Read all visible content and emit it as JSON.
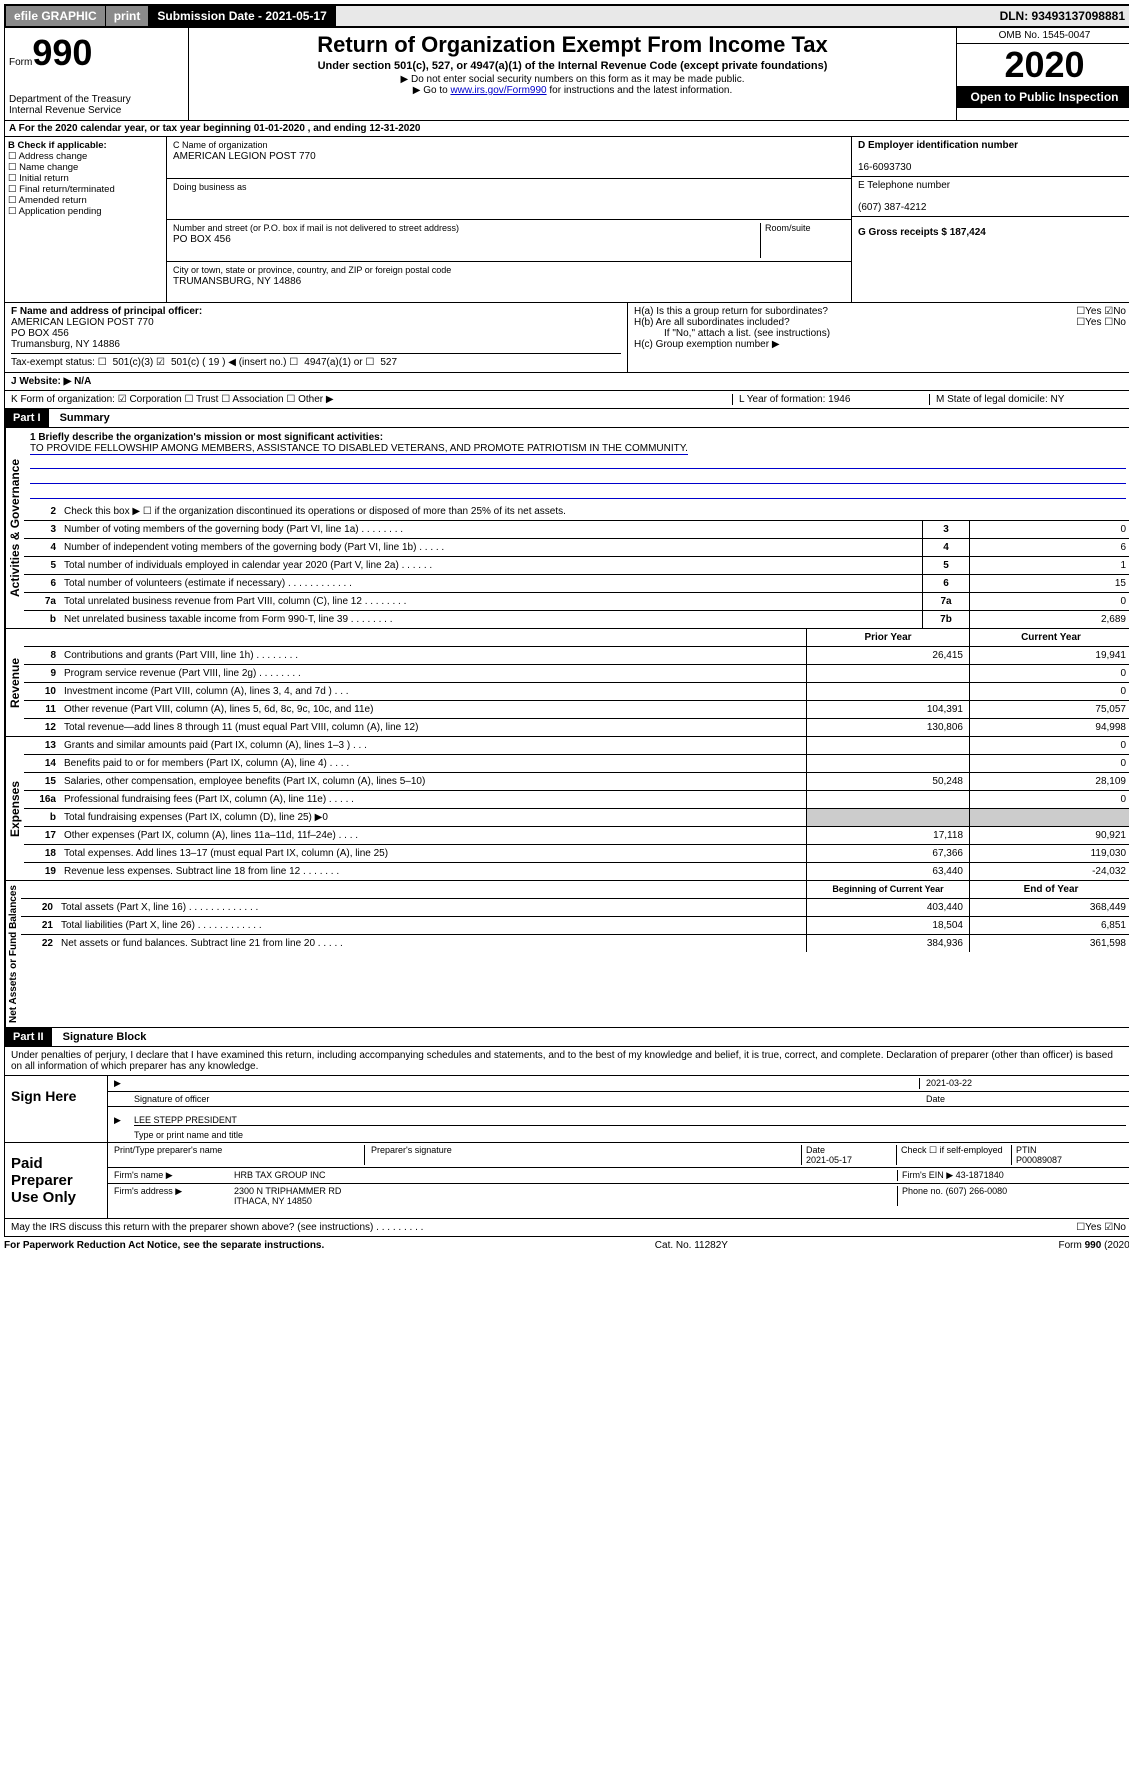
{
  "topbar": {
    "efile": "efile GRAPHIC",
    "print": "print",
    "sub_date_label": "Submission Date - 2021-05-17",
    "dln": "DLN: 93493137098881"
  },
  "header": {
    "form_label": "Form",
    "form_num": "990",
    "dept": "Department of the Treasury\nInternal Revenue Service",
    "title": "Return of Organization Exempt From Income Tax",
    "sub1": "Under section 501(c), 527, or 4947(a)(1) of the Internal Revenue Code (except private foundations)",
    "sub2": "▶ Do not enter social security numbers on this form as it may be made public.",
    "sub3_pre": "▶ Go to ",
    "sub3_link": "www.irs.gov/Form990",
    "sub3_post": " for instructions and the latest information.",
    "omb": "OMB No. 1545-0047",
    "year": "2020",
    "inspect": "Open to Public Inspection"
  },
  "section_a": "A For the 2020 calendar year, or tax year beginning 01-01-2020    , and ending 12-31-2020",
  "col_b": {
    "title": "B Check if applicable:",
    "items": [
      "Address change",
      "Name change",
      "Initial return",
      "Final return/terminated",
      "Amended return",
      "Application pending"
    ]
  },
  "col_c": {
    "c_label": "C Name of organization",
    "c_name": "AMERICAN LEGION POST 770",
    "dba": "Doing business as",
    "addr_label": "Number and street (or P.O. box if mail is not delivered to street address)",
    "room": "Room/suite",
    "addr": "PO BOX 456",
    "city_label": "City or town, state or province, country, and ZIP or foreign postal code",
    "city": "TRUMANSBURG, NY  14886"
  },
  "col_d": {
    "d_label": "D Employer identification number",
    "ein": "16-6093730",
    "e_label": "E Telephone number",
    "phone": "(607) 387-4212",
    "g": "G Gross receipts $ 187,424"
  },
  "block_fh": {
    "f_label": "F  Name and address of principal officer:",
    "f_name": "AMERICAN LEGION POST 770",
    "f_addr1": "PO BOX 456",
    "f_addr2": "Trumansburg, NY  14886",
    "tax_label": "Tax-exempt status:",
    "tax_501c3": "501(c)(3)",
    "tax_501c": "501(c) ( 19 ) ◀ (insert no.)",
    "tax_4947": "4947(a)(1) or",
    "tax_527": "527",
    "ha": "H(a)  Is this a group return for subordinates?",
    "ha_ans": "☐Yes ☑No",
    "hb": "H(b)  Are all subordinates included?",
    "hb_ans": "☐Yes ☐No",
    "hb_note": "If \"No,\" attach a list. (see instructions)",
    "hc": "H(c)  Group exemption number ▶"
  },
  "line_j": "J  Website: ▶  N/A",
  "line_k": {
    "k": "K Form of organization:  ☑ Corporation  ☐ Trust  ☐ Association  ☐ Other ▶",
    "l": "L Year of formation: 1946",
    "m": "M State of legal domicile: NY"
  },
  "part1": {
    "label": "Part I",
    "title": "Summary",
    "q1": "1  Briefly describe the organization's mission or most significant activities:",
    "mission": "TO PROVIDE FELLOWSHIP AMONG MEMBERS, ASSISTANCE TO DISABLED VETERANS, AND PROMOTE PATRIOTISM IN THE COMMUNITY.",
    "q2": "Check this box ▶ ☐  if the organization discontinued its operations or disposed of more than 25% of its net assets.",
    "governance_label": "Activities & Governance",
    "revenue_label": "Revenue",
    "expenses_label": "Expenses",
    "net_label": "Net Assets or Fund Balances",
    "lines_gov": [
      {
        "n": "3",
        "d": "Number of voting members of the governing body (Part VI, line 1a)  .    .    .    .    .    .    .    .",
        "b": "3",
        "v": "0"
      },
      {
        "n": "4",
        "d": "Number of independent voting members of the governing body (Part VI, line 1b)  .    .    .    .    .",
        "b": "4",
        "v": "6"
      },
      {
        "n": "5",
        "d": "Total number of individuals employed in calendar year 2020 (Part V, line 2a)  .    .    .    .    .    .",
        "b": "5",
        "v": "1"
      },
      {
        "n": "6",
        "d": "Total number of volunteers (estimate if necessary)  .    .    .    .    .    .    .    .    .    .    .    .",
        "b": "6",
        "v": "15"
      },
      {
        "n": "7a",
        "d": "Total unrelated business revenue from Part VIII, column (C), line 12  .    .    .    .    .    .    .    .",
        "b": "7a",
        "v": "0"
      },
      {
        "n": "  b",
        "d": "Net unrelated business taxable income from Form 990-T, line 39  .    .    .    .    .    .    .    .",
        "b": "7b",
        "v": "2,689"
      }
    ],
    "head_prior": "Prior Year",
    "head_current": "Current Year",
    "lines_rev": [
      {
        "n": "8",
        "d": "Contributions and grants (Part VIII, line 1h)  .    .    .    .    .    .    .    .",
        "p": "26,415",
        "c": "19,941"
      },
      {
        "n": "9",
        "d": "Program service revenue (Part VIII, line 2g)  .    .    .    .    .    .    .    .",
        "p": "",
        "c": "0"
      },
      {
        "n": "10",
        "d": "Investment income (Part VIII, column (A), lines 3, 4, and 7d )  .    .    .",
        "p": "",
        "c": "0"
      },
      {
        "n": "11",
        "d": "Other revenue (Part VIII, column (A), lines 5, 6d, 8c, 9c, 10c, and 11e)",
        "p": "104,391",
        "c": "75,057"
      },
      {
        "n": "12",
        "d": "Total revenue—add lines 8 through 11 (must equal Part VIII, column (A), line 12)",
        "p": "130,806",
        "c": "94,998"
      }
    ],
    "lines_exp": [
      {
        "n": "13",
        "d": "Grants and similar amounts paid (Part IX, column (A), lines 1–3 )  .    .    .",
        "p": "",
        "c": "0"
      },
      {
        "n": "14",
        "d": "Benefits paid to or for members (Part IX, column (A), line 4)  .    .    .    .",
        "p": "",
        "c": "0"
      },
      {
        "n": "15",
        "d": "Salaries, other compensation, employee benefits (Part IX, column (A), lines 5–10)",
        "p": "50,248",
        "c": "28,109"
      },
      {
        "n": "16a",
        "d": "Professional fundraising fees (Part IX, column (A), line 11e)  .    .    .    .    .",
        "p": "",
        "c": "0"
      },
      {
        "n": "  b",
        "d": "Total fundraising expenses (Part IX, column (D), line 25) ▶0",
        "p": "shaded",
        "c": "shaded"
      },
      {
        "n": "17",
        "d": "Other expenses (Part IX, column (A), lines 11a–11d, 11f–24e)  .    .    .    .",
        "p": "17,118",
        "c": "90,921"
      },
      {
        "n": "18",
        "d": "Total expenses. Add lines 13–17 (must equal Part IX, column (A), line 25)",
        "p": "67,366",
        "c": "119,030"
      },
      {
        "n": "19",
        "d": "Revenue less expenses. Subtract line 18 from line 12  .    .    .    .    .    .    .",
        "p": "63,440",
        "c": "-24,032"
      }
    ],
    "head_begin": "Beginning of Current Year",
    "head_end": "End of Year",
    "lines_net": [
      {
        "n": "20",
        "d": "Total assets (Part X, line 16)  .    .    .    .    .    .    .    .    .    .    .    .    .",
        "p": "403,440",
        "c": "368,449"
      },
      {
        "n": "21",
        "d": "Total liabilities (Part X, line 26)  .    .    .    .    .    .    .    .    .    .    .    .",
        "p": "18,504",
        "c": "6,851"
      },
      {
        "n": "22",
        "d": "Net assets or fund balances. Subtract line 21 from line 20  .    .    .    .    .",
        "p": "384,936",
        "c": "361,598"
      }
    ]
  },
  "part2": {
    "label": "Part II",
    "title": "Signature Block",
    "penalty": "Under penalties of perjury, I declare that I have examined this return, including accompanying schedules and statements, and to the best of my knowledge and belief, it is true, correct, and complete. Declaration of preparer (other than officer) is based on all information of which preparer has any knowledge."
  },
  "sign": {
    "label": "Sign Here",
    "sig_of_officer": "Signature of officer",
    "date": "2021-03-22",
    "date_label": "Date",
    "name": "LEE STEPP PRESIDENT",
    "name_label": "Type or print name and title"
  },
  "paid": {
    "label": "Paid Preparer Use Only",
    "h1": "Print/Type preparer's name",
    "h2": "Preparer's signature",
    "h3": "Date",
    "date": "2021-05-17",
    "h4": "Check ☐ if self-employed",
    "h5": "PTIN",
    "ptin": "P00089087",
    "firm_name_l": "Firm's name    ▶",
    "firm_name": "HRB TAX GROUP INC",
    "firm_ein_l": "Firm's EIN ▶",
    "firm_ein": "43-1871840",
    "firm_addr_l": "Firm's address ▶",
    "firm_addr": "2300 N TRIPHAMMER RD",
    "firm_city": "ITHACA, NY  14850",
    "phone_l": "Phone no.",
    "phone": "(607) 266-0080"
  },
  "discuss": "May the IRS discuss this return with the preparer shown above? (see instructions)   .    .    .    .    .    .    .    .    .",
  "discuss_ans": "☐Yes ☑No",
  "footer": {
    "left": "For Paperwork Reduction Act Notice, see the separate instructions.",
    "mid": "Cat. No. 11282Y",
    "right": "Form 990 (2020)"
  }
}
